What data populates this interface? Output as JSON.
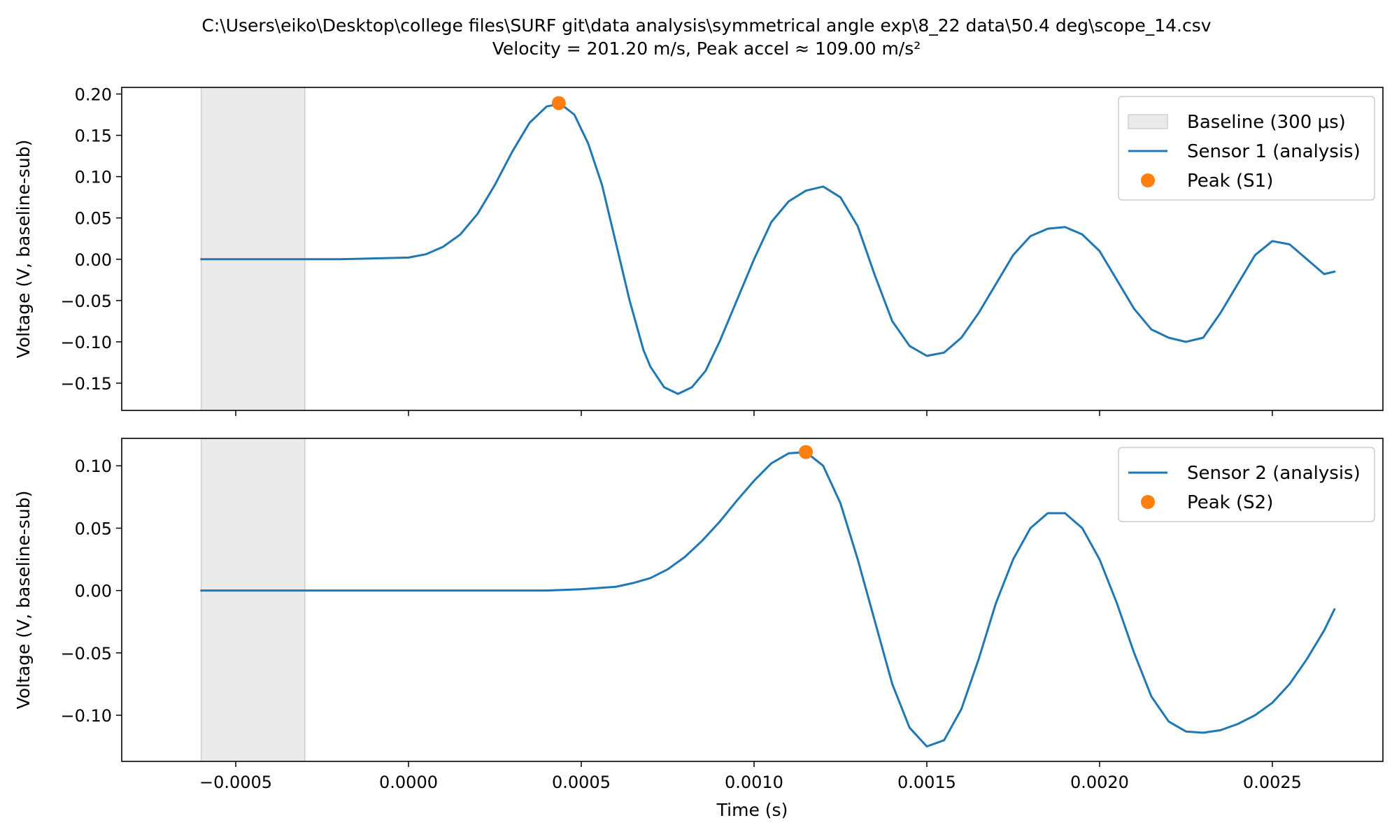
{
  "figure": {
    "title_line1": "C:\\Users\\eiko\\Desktop\\college files\\SURF git\\data analysis\\symmetrical angle exp\\8_22 data\\50.4 deg\\scope_14.csv",
    "title_line2": "Velocity = 201.20 m/s, Peak accel ≈ 109.00 m/s²"
  },
  "colors": {
    "line": "#1f77b4",
    "peak": "#ff7f0e",
    "baseline_fill": "#d9d9d9"
  },
  "chart_data": [
    {
      "type": "line",
      "xlabel": "",
      "ylabel": "Voltage (V, baseline-sub)",
      "xlim": [
        -0.00083,
        0.00282
      ],
      "ylim": [
        -0.183,
        0.208
      ],
      "x_ticks": [
        -0.0005,
        0.0,
        0.0005,
        0.001,
        0.0015,
        0.002,
        0.0025
      ],
      "x_tick_labels": [
        "",
        "",
        "",
        "",
        "",
        "",
        ""
      ],
      "y_ticks": [
        0.2,
        0.15,
        0.1,
        0.05,
        0.0,
        -0.05,
        -0.1,
        -0.15
      ],
      "y_tick_labels": [
        "0.20",
        "0.15",
        "0.10",
        "0.05",
        "0.00",
        "−0.05",
        "−0.10",
        "−0.15"
      ],
      "baseline_span": [
        -0.0006,
        -0.0003
      ],
      "legend_position": "upper right",
      "legend": [
        {
          "kind": "patch",
          "label": "Baseline (300 μs)"
        },
        {
          "kind": "line",
          "label": "Sensor 1 (analysis)"
        },
        {
          "kind": "marker",
          "label": "Peak (S1)"
        }
      ],
      "series": [
        {
          "name": "Sensor 1 (analysis)",
          "x": [
            -0.0006,
            -0.0004,
            -0.0002,
            0.0,
            5e-05,
            0.0001,
            0.00015,
            0.0002,
            0.00025,
            0.0003,
            0.00035,
            0.0004,
            0.00044,
            0.00048,
            0.00052,
            0.00056,
            0.0006,
            0.00064,
            0.00068,
            0.0007,
            0.00074,
            0.00078,
            0.00082,
            0.00086,
            0.0009,
            0.00095,
            0.001,
            0.00105,
            0.0011,
            0.00115,
            0.0012,
            0.00125,
            0.0013,
            0.00135,
            0.0014,
            0.00145,
            0.0015,
            0.00155,
            0.0016,
            0.00165,
            0.0017,
            0.00175,
            0.0018,
            0.00185,
            0.0019,
            0.00195,
            0.002,
            0.00205,
            0.0021,
            0.00215,
            0.0022,
            0.00225,
            0.0023,
            0.00235,
            0.0024,
            0.00245,
            0.0025,
            0.00255,
            0.0026,
            0.00265,
            0.00268
          ],
          "y": [
            0.0,
            0.0,
            0.0,
            0.002,
            0.006,
            0.015,
            0.03,
            0.055,
            0.09,
            0.13,
            0.165,
            0.185,
            0.188,
            0.175,
            0.14,
            0.09,
            0.02,
            -0.05,
            -0.11,
            -0.13,
            -0.155,
            -0.163,
            -0.155,
            -0.135,
            -0.1,
            -0.05,
            0.0,
            0.045,
            0.07,
            0.083,
            0.088,
            0.075,
            0.04,
            -0.02,
            -0.075,
            -0.105,
            -0.117,
            -0.113,
            -0.095,
            -0.065,
            -0.03,
            0.005,
            0.028,
            0.037,
            0.039,
            0.03,
            0.01,
            -0.025,
            -0.06,
            -0.085,
            -0.095,
            -0.1,
            -0.095,
            -0.065,
            -0.03,
            0.005,
            0.022,
            0.018,
            0.0,
            -0.018,
            -0.015
          ]
        }
      ],
      "peak": {
        "label": "Peak (S1)",
        "x": 0.000435,
        "y": 0.189
      }
    },
    {
      "type": "line",
      "xlabel": "Time (s)",
      "ylabel": "Voltage (V, baseline-sub)",
      "xlim": [
        -0.00083,
        0.00282
      ],
      "ylim": [
        -0.137,
        0.122
      ],
      "x_ticks": [
        -0.0005,
        0.0,
        0.0005,
        0.001,
        0.0015,
        0.002,
        0.0025
      ],
      "x_tick_labels": [
        "−0.0005",
        "0.0000",
        "0.0005",
        "0.0010",
        "0.0015",
        "0.0020",
        "0.0025"
      ],
      "y_ticks": [
        0.1,
        0.05,
        0.0,
        -0.05,
        -0.1
      ],
      "y_tick_labels": [
        "0.10",
        "0.05",
        "0.00",
        "−0.05",
        "−0.10"
      ],
      "baseline_span": [
        -0.0006,
        -0.0003
      ],
      "legend_position": "upper right",
      "legend": [
        {
          "kind": "line",
          "label": "Sensor 2 (analysis)"
        },
        {
          "kind": "marker",
          "label": "Peak (S2)"
        }
      ],
      "series": [
        {
          "name": "Sensor 2 (analysis)",
          "x": [
            -0.0006,
            -0.0004,
            -0.0002,
            0.0,
            0.0002,
            0.0004,
            0.0005,
            0.0006,
            0.00065,
            0.0007,
            0.00075,
            0.0008,
            0.00085,
            0.0009,
            0.00095,
            0.001,
            0.00105,
            0.0011,
            0.00115,
            0.0012,
            0.00125,
            0.0013,
            0.00135,
            0.0014,
            0.00145,
            0.0015,
            0.00155,
            0.0016,
            0.00165,
            0.0017,
            0.00175,
            0.0018,
            0.00185,
            0.0019,
            0.00195,
            0.002,
            0.00205,
            0.0021,
            0.00215,
            0.0022,
            0.00225,
            0.0023,
            0.00235,
            0.0024,
            0.00245,
            0.0025,
            0.00255,
            0.0026,
            0.00265,
            0.00268
          ],
          "y": [
            0.0,
            0.0,
            0.0,
            0.0,
            0.0,
            0.0,
            0.001,
            0.003,
            0.006,
            0.01,
            0.017,
            0.027,
            0.04,
            0.055,
            0.072,
            0.088,
            0.102,
            0.11,
            0.111,
            0.1,
            0.07,
            0.025,
            -0.025,
            -0.075,
            -0.11,
            -0.125,
            -0.12,
            -0.095,
            -0.055,
            -0.01,
            0.025,
            0.05,
            0.062,
            0.062,
            0.05,
            0.025,
            -0.01,
            -0.05,
            -0.085,
            -0.105,
            -0.113,
            -0.114,
            -0.112,
            -0.107,
            -0.1,
            -0.09,
            -0.075,
            -0.055,
            -0.032,
            -0.015
          ]
        }
      ],
      "peak": {
        "label": "Peak (S2)",
        "x": 0.00115,
        "y": 0.111
      }
    }
  ]
}
